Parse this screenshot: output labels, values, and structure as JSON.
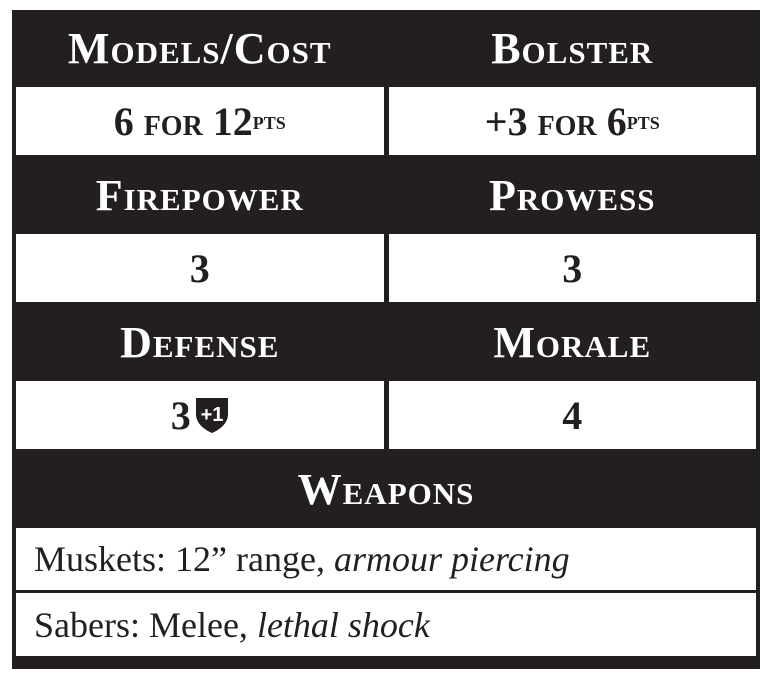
{
  "stats": {
    "models_cost": {
      "label": "Models/Cost",
      "count": "6",
      "for": "for",
      "cost": "12",
      "unit": "pts"
    },
    "bolster": {
      "label": "Bolster",
      "amount": "+3",
      "for": "for",
      "cost": "6",
      "unit": "pts"
    },
    "firepower": {
      "label": "Firepower",
      "value": "3"
    },
    "prowess": {
      "label": "Prowess",
      "value": "3"
    },
    "defense": {
      "label": "Defense",
      "value": "3",
      "bonus": "+1",
      "bonus_icon": "shield-icon"
    },
    "morale": {
      "label": "Morale",
      "value": "4"
    }
  },
  "weapons": {
    "label": "Weapons",
    "items": [
      {
        "name": "Muskets:",
        "details": "12” range,",
        "traits": "armour piercing"
      },
      {
        "name": "Sabers:",
        "details": "Melee,",
        "traits": "lethal shock"
      }
    ]
  },
  "colors": {
    "dark": "#231f20",
    "light": "#ffffff"
  }
}
